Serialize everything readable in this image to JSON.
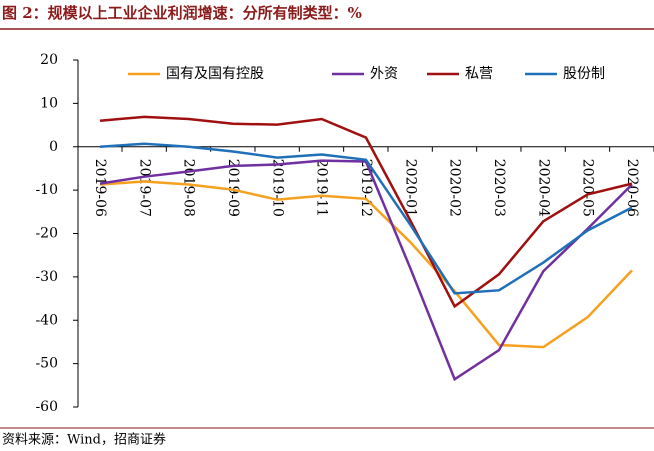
{
  "title": "图 2：规模以上工业企业利润增速：分所有制类型：%",
  "source": "资料来源：Wind，招商证券",
  "chart_data": {
    "type": "line",
    "categories": [
      "2019-06",
      "2019-07",
      "2019-08",
      "2019-09",
      "2019-10",
      "2019-11",
      "2019-12",
      "2020-01",
      "2020-02",
      "2020-03",
      "2020-04",
      "2020-05",
      "2020-06"
    ],
    "series": [
      {
        "name": "国有及国有控股",
        "color": "#f5a01e",
        "values": [
          -8.7,
          -8,
          -8.7,
          -9.9,
          -12.2,
          -11.3,
          -12,
          -22,
          -33.3,
          -45.7,
          -46.2,
          -39.3,
          -28.5
        ]
      },
      {
        "name": "外资",
        "color": "#7030a0",
        "values": [
          -8.5,
          -6.9,
          -5.7,
          -4.4,
          -4.1,
          -3.2,
          -3.4,
          -28,
          -53.6,
          -46.9,
          -28.7,
          -18.9,
          -8.7
        ]
      },
      {
        "name": "私营",
        "color": "#a01010",
        "values": [
          6,
          6.9,
          6.4,
          5.3,
          5.1,
          6.4,
          2.1,
          -17,
          -36.8,
          -29.4,
          -17.2,
          -11,
          -8.5
        ]
      },
      {
        "name": "股份制",
        "color": "#1f70b8",
        "values": [
          0,
          0.7,
          0,
          -1.1,
          -2.5,
          -1.8,
          -3,
          -18,
          -33.8,
          -33.1,
          -26.7,
          -19.3,
          -14
        ]
      }
    ],
    "ylim": [
      -60,
      20
    ],
    "yticks": [
      -60,
      -50,
      -40,
      -30,
      -20,
      -10,
      0,
      10,
      20
    ]
  }
}
